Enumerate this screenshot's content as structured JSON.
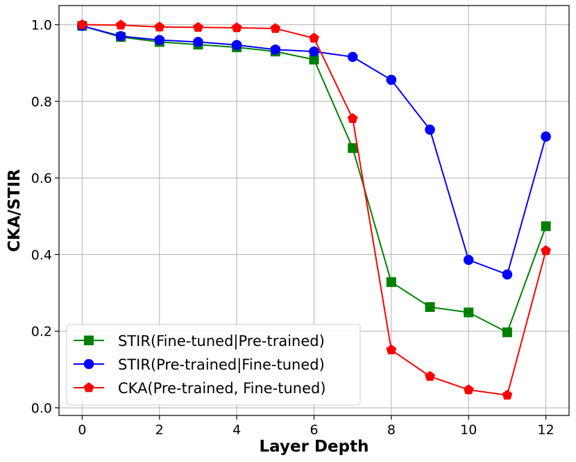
{
  "chart_data": {
    "type": "line",
    "title": "",
    "xlabel": "Layer Depth",
    "ylabel": "CKA/STIR",
    "xlim": [
      -0.6,
      12.6
    ],
    "ylim": [
      -0.02,
      1.05
    ],
    "xticks": [
      0,
      2,
      4,
      6,
      8,
      10,
      12
    ],
    "xtick_labels": [
      "0",
      "2",
      "4",
      "6",
      "8",
      "10",
      "12"
    ],
    "yticks": [
      0.0,
      0.2,
      0.4,
      0.6,
      0.8,
      1.0
    ],
    "ytick_labels": [
      "0.0",
      "0.2",
      "0.4",
      "0.6",
      "0.8",
      "1.0"
    ],
    "grid": true,
    "legend_position": "bottom-left",
    "x": [
      0,
      1,
      2,
      3,
      4,
      5,
      6,
      7,
      8,
      9,
      10,
      11,
      12
    ],
    "series": [
      {
        "name": "STIR(Fine-tuned|Pre-trained)",
        "color": "#008000",
        "marker": "square",
        "values": [
          0.997,
          0.968,
          0.955,
          0.948,
          0.941,
          0.93,
          0.909,
          0.678,
          0.328,
          0.263,
          0.249,
          0.197,
          0.474
        ]
      },
      {
        "name": "STIR(Pre-trained|Fine-tuned)",
        "color": "#0000ff",
        "marker": "circle",
        "values": [
          0.997,
          0.97,
          0.96,
          0.955,
          0.947,
          0.935,
          0.93,
          0.916,
          0.856,
          0.726,
          0.386,
          0.348,
          0.708
        ]
      },
      {
        "name": "CKA(Pre-trained, Fine-tuned)",
        "color": "#ff0000",
        "marker": "pentagon",
        "values": [
          1.0,
          0.999,
          0.994,
          0.993,
          0.992,
          0.99,
          0.965,
          0.755,
          0.151,
          0.082,
          0.047,
          0.033,
          0.41
        ]
      }
    ]
  }
}
